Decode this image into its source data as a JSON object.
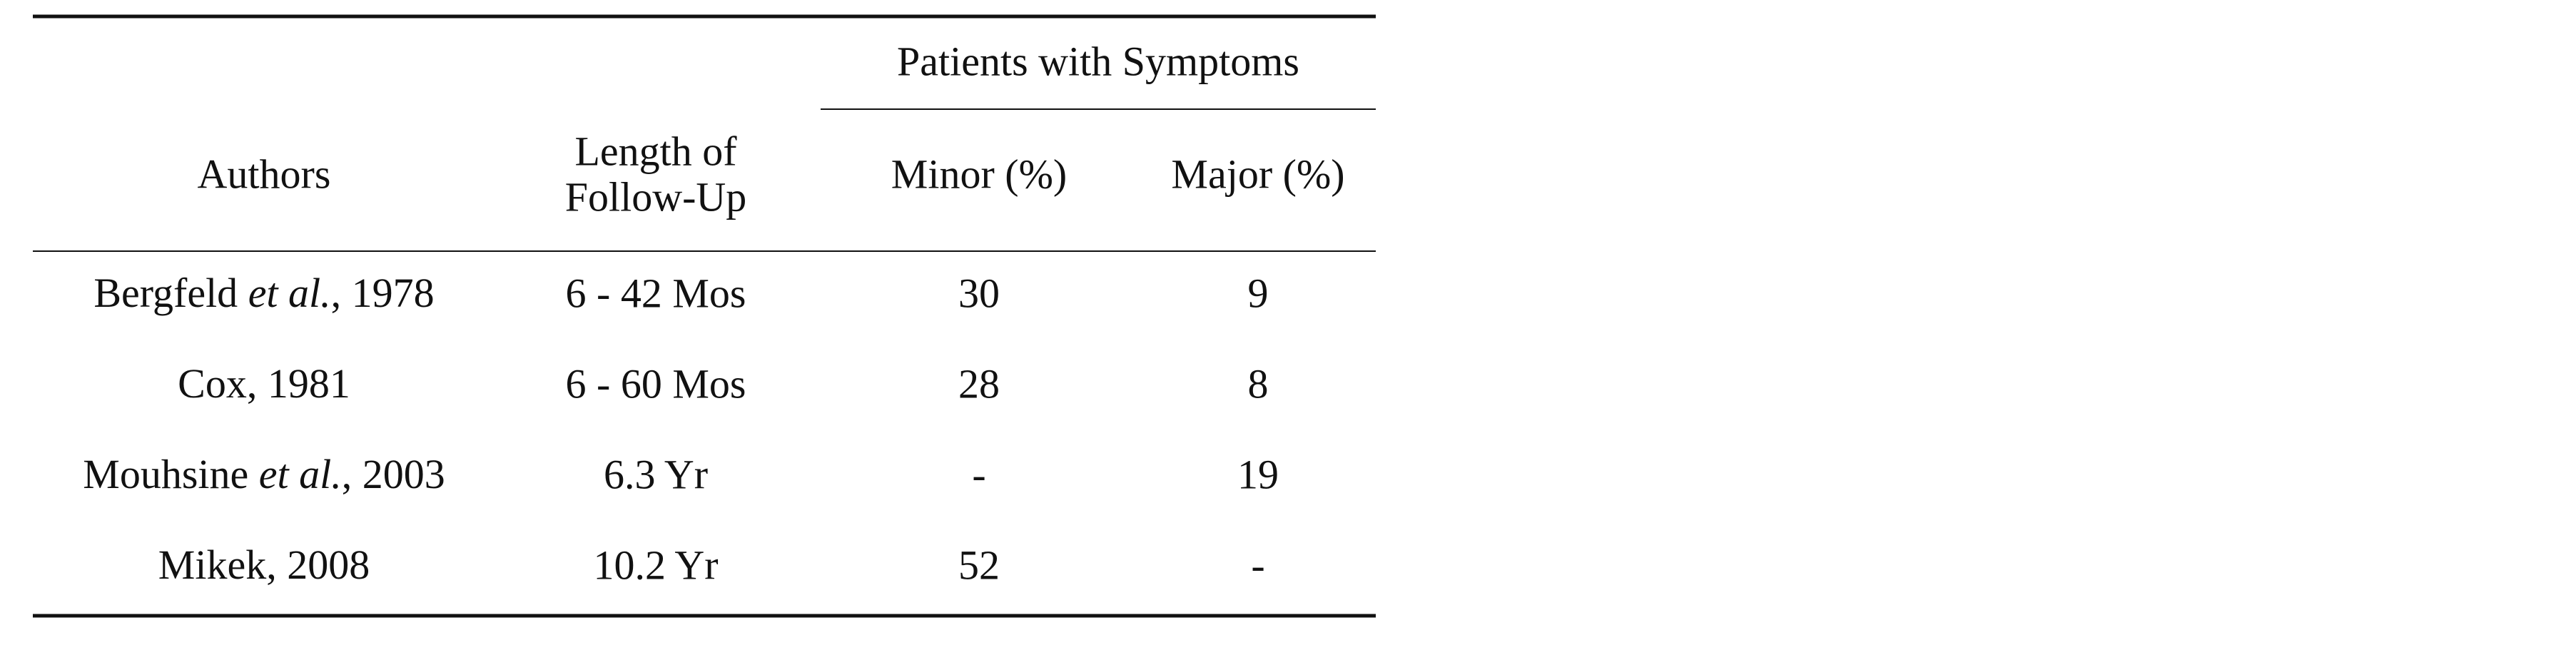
{
  "table": {
    "group_header": "Patients with Symptoms",
    "headers": [
      [
        "Authors"
      ],
      [
        "Length of",
        "Follow-Up"
      ],
      [
        "Minor (%)"
      ],
      [
        "Major (%)"
      ]
    ],
    "rows": [
      [
        [
          {
            "text": "Bergfeld "
          },
          {
            "text": "et al.",
            "italic": true
          },
          {
            "text": ", 1978"
          }
        ],
        "6 - 42 Mos",
        30,
        9
      ],
      [
        [
          {
            "text": "Cox, 1981"
          }
        ],
        "6 - 60 Mos",
        28,
        8
      ],
      [
        [
          {
            "text": "Mouhsine "
          },
          {
            "text": "et al.",
            "italic": true
          },
          {
            "text": ", 2003"
          }
        ],
        "6.3 Yr",
        "-",
        19
      ],
      [
        [
          {
            "text": "Mikek, 2008"
          }
        ],
        "10.2 Yr",
        52,
        "-"
      ]
    ]
  }
}
